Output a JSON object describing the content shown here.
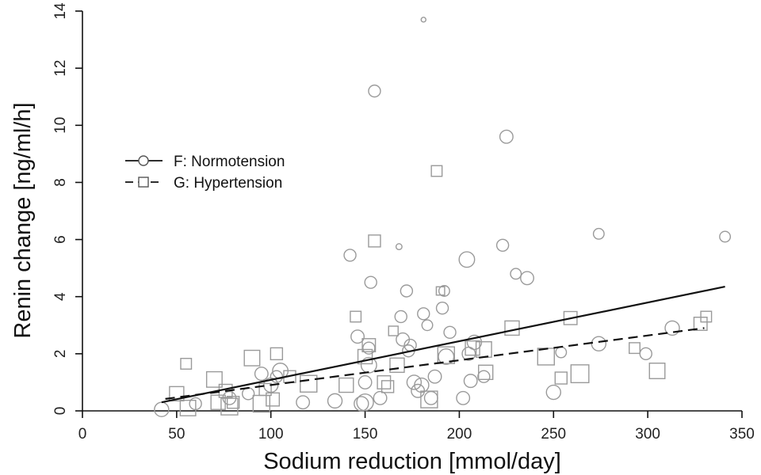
{
  "chart_data": {
    "type": "scatter",
    "xlabel": "Sodium reduction [mmol/day]",
    "ylabel": "Renin change [ng/ml/h]",
    "xlim": [
      0,
      350
    ],
    "ylim": [
      0,
      14
    ],
    "x_ticks": [
      "0",
      "50",
      "100",
      "150",
      "200",
      "250",
      "300",
      "350"
    ],
    "y_ticks": [
      "0",
      "2",
      "4",
      "6",
      "8",
      "10",
      "12",
      "14"
    ],
    "grid": false,
    "legend_position": "upper-left",
    "series": [
      {
        "name": "F: Normotension",
        "marker": "circle",
        "line_style": "solid",
        "line_color": "#111111",
        "marker_color": "#9a9a9a",
        "fit": {
          "x": [
            42,
            341
          ],
          "y": [
            0.3,
            4.35
          ]
        },
        "points": [
          {
            "x": 42,
            "y": 0.05,
            "size": 1.2
          },
          {
            "x": 60,
            "y": 0.25,
            "size": 1.0
          },
          {
            "x": 78,
            "y": 0.45,
            "size": 1.1
          },
          {
            "x": 88,
            "y": 0.6,
            "size": 1.0
          },
          {
            "x": 95,
            "y": 1.3,
            "size": 1.1
          },
          {
            "x": 100,
            "y": 0.9,
            "size": 1.2
          },
          {
            "x": 103,
            "y": 1.2,
            "size": 1.0
          },
          {
            "x": 105,
            "y": 1.4,
            "size": 1.3
          },
          {
            "x": 117,
            "y": 0.3,
            "size": 1.1
          },
          {
            "x": 134,
            "y": 0.35,
            "size": 1.2
          },
          {
            "x": 142,
            "y": 5.45,
            "size": 1.0
          },
          {
            "x": 146,
            "y": 2.6,
            "size": 1.1
          },
          {
            "x": 148,
            "y": 0.25,
            "size": 1.2
          },
          {
            "x": 150,
            "y": 0.3,
            "size": 1.4
          },
          {
            "x": 150,
            "y": 1.0,
            "size": 1.1
          },
          {
            "x": 152,
            "y": 2.2,
            "size": 1.0
          },
          {
            "x": 152,
            "y": 1.6,
            "size": 1.3
          },
          {
            "x": 153,
            "y": 4.5,
            "size": 1.0
          },
          {
            "x": 155,
            "y": 11.2,
            "size": 1.0
          },
          {
            "x": 158,
            "y": 0.45,
            "size": 1.1
          },
          {
            "x": 168,
            "y": 5.75,
            "size": 0.5
          },
          {
            "x": 169,
            "y": 3.3,
            "size": 1.0
          },
          {
            "x": 170,
            "y": 2.5,
            "size": 1.1
          },
          {
            "x": 172,
            "y": 4.2,
            "size": 1.0
          },
          {
            "x": 173,
            "y": 2.1,
            "size": 1.0
          },
          {
            "x": 174,
            "y": 2.3,
            "size": 1.0
          },
          {
            "x": 176,
            "y": 1.0,
            "size": 1.2
          },
          {
            "x": 178,
            "y": 0.7,
            "size": 1.1
          },
          {
            "x": 180,
            "y": 0.9,
            "size": 1.2
          },
          {
            "x": 181,
            "y": 3.4,
            "size": 1.0
          },
          {
            "x": 181,
            "y": 13.7,
            "size": 0.4
          },
          {
            "x": 183,
            "y": 3.0,
            "size": 0.9
          },
          {
            "x": 185,
            "y": 0.45,
            "size": 1.1
          },
          {
            "x": 187,
            "y": 1.2,
            "size": 1.1
          },
          {
            "x": 191,
            "y": 3.6,
            "size": 1.0
          },
          {
            "x": 192,
            "y": 4.2,
            "size": 0.9
          },
          {
            "x": 193,
            "y": 1.9,
            "size": 1.3
          },
          {
            "x": 195,
            "y": 2.75,
            "size": 1.0
          },
          {
            "x": 202,
            "y": 0.45,
            "size": 1.1
          },
          {
            "x": 204,
            "y": 5.3,
            "size": 1.3
          },
          {
            "x": 205,
            "y": 2.0,
            "size": 1.1
          },
          {
            "x": 206,
            "y": 1.05,
            "size": 1.1
          },
          {
            "x": 208,
            "y": 2.4,
            "size": 1.2
          },
          {
            "x": 213,
            "y": 1.2,
            "size": 1.0
          },
          {
            "x": 223,
            "y": 5.8,
            "size": 1.0
          },
          {
            "x": 225,
            "y": 9.6,
            "size": 1.1
          },
          {
            "x": 230,
            "y": 4.8,
            "size": 0.9
          },
          {
            "x": 236,
            "y": 4.65,
            "size": 1.1
          },
          {
            "x": 250,
            "y": 0.65,
            "size": 1.2
          },
          {
            "x": 254,
            "y": 2.05,
            "size": 0.9
          },
          {
            "x": 274,
            "y": 6.2,
            "size": 0.9
          },
          {
            "x": 274,
            "y": 2.35,
            "size": 1.2
          },
          {
            "x": 299,
            "y": 2.0,
            "size": 1.0
          },
          {
            "x": 313,
            "y": 2.9,
            "size": 1.2
          },
          {
            "x": 341,
            "y": 6.1,
            "size": 0.9
          }
        ]
      },
      {
        "name": "G: Hypertension",
        "marker": "square",
        "line_style": "dashed",
        "line_color": "#111111",
        "marker_color": "#9a9a9a",
        "fit": {
          "x": [
            44,
            330
          ],
          "y": [
            0.42,
            2.9
          ]
        },
        "points": [
          {
            "x": 50,
            "y": 0.6,
            "size": 1.2
          },
          {
            "x": 55,
            "y": 1.65,
            "size": 0.9
          },
          {
            "x": 56,
            "y": 0.1,
            "size": 1.3
          },
          {
            "x": 70,
            "y": 1.1,
            "size": 1.3
          },
          {
            "x": 72,
            "y": 0.3,
            "size": 1.2
          },
          {
            "x": 76,
            "y": 0.7,
            "size": 1.1
          },
          {
            "x": 78,
            "y": 0.15,
            "size": 1.4
          },
          {
            "x": 80,
            "y": 0.3,
            "size": 1.0
          },
          {
            "x": 90,
            "y": 1.85,
            "size": 1.3
          },
          {
            "x": 95,
            "y": 0.25,
            "size": 1.4
          },
          {
            "x": 97,
            "y": 0.75,
            "size": 1.0
          },
          {
            "x": 101,
            "y": 0.4,
            "size": 1.1
          },
          {
            "x": 103,
            "y": 2.0,
            "size": 1.0
          },
          {
            "x": 110,
            "y": 1.2,
            "size": 1.0
          },
          {
            "x": 120,
            "y": 0.95,
            "size": 1.4
          },
          {
            "x": 140,
            "y": 0.9,
            "size": 1.2
          },
          {
            "x": 145,
            "y": 3.3,
            "size": 0.9
          },
          {
            "x": 150,
            "y": 1.9,
            "size": 1.2
          },
          {
            "x": 152,
            "y": 2.3,
            "size": 1.1
          },
          {
            "x": 155,
            "y": 5.95,
            "size": 1.0
          },
          {
            "x": 160,
            "y": 1.0,
            "size": 1.1
          },
          {
            "x": 162,
            "y": 0.85,
            "size": 1.0
          },
          {
            "x": 165,
            "y": 2.8,
            "size": 0.8
          },
          {
            "x": 167,
            "y": 1.6,
            "size": 1.2
          },
          {
            "x": 184,
            "y": 0.4,
            "size": 1.4
          },
          {
            "x": 188,
            "y": 8.4,
            "size": 0.9
          },
          {
            "x": 190,
            "y": 4.2,
            "size": 0.7
          },
          {
            "x": 193,
            "y": 1.95,
            "size": 1.4
          },
          {
            "x": 207,
            "y": 2.2,
            "size": 1.2
          },
          {
            "x": 213,
            "y": 2.15,
            "size": 1.3
          },
          {
            "x": 214,
            "y": 1.35,
            "size": 1.2
          },
          {
            "x": 228,
            "y": 2.9,
            "size": 1.2
          },
          {
            "x": 246,
            "y": 1.9,
            "size": 1.4
          },
          {
            "x": 254,
            "y": 1.15,
            "size": 1.0
          },
          {
            "x": 259,
            "y": 3.25,
            "size": 1.1
          },
          {
            "x": 264,
            "y": 1.3,
            "size": 1.5
          },
          {
            "x": 293,
            "y": 2.2,
            "size": 0.9
          },
          {
            "x": 305,
            "y": 1.4,
            "size": 1.3
          },
          {
            "x": 328,
            "y": 3.05,
            "size": 1.1
          },
          {
            "x": 331,
            "y": 3.3,
            "size": 0.9
          }
        ]
      }
    ]
  }
}
